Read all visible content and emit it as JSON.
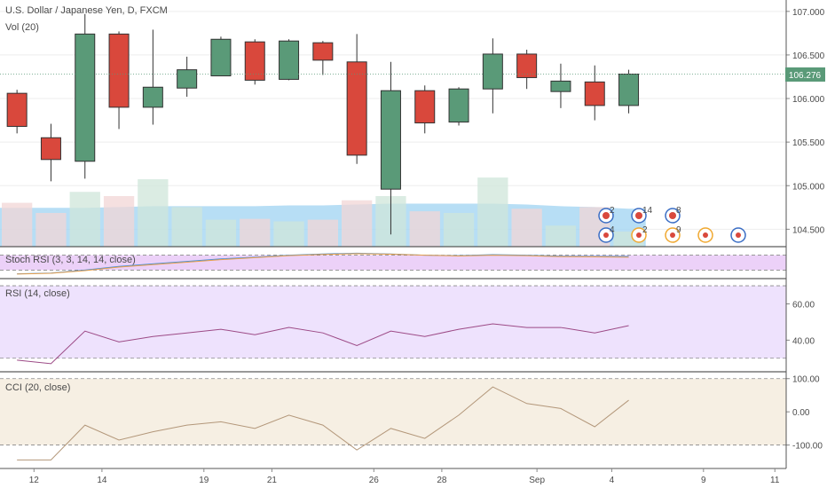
{
  "title": "U.S. Dollar / Japanese Yen, D, FXCM",
  "volume_label": "Vol (20)",
  "last_price_label": "106.276",
  "colors": {
    "up": "#5a9a78",
    "down": "#d9483c",
    "vol_up": "#cfe6da",
    "vol_down": "#f2d6d6",
    "vol_ma": "#9fd3f2",
    "stoch_bg": "#e9c9f7",
    "rsi_bg": "#ecdffd",
    "cci_bg": "#f5eee1",
    "last_price": "#5a9a78",
    "grid": "#eeeeee",
    "separator": "#333333"
  },
  "x_axis": {
    "ticks": [
      "12",
      "14",
      "19",
      "21",
      "26",
      "28",
      "Sep",
      "4",
      "9",
      "11"
    ]
  },
  "chart_data": [
    {
      "type": "candlestick",
      "name": "price",
      "y_ticks": [
        "107.000",
        "106.500",
        "106.000",
        "105.500",
        "105.000",
        "104.500"
      ],
      "ylim": [
        104.3,
        107.1
      ],
      "candles": [
        {
          "o": 106.06,
          "h": 106.1,
          "l": 105.6,
          "c": 105.68
        },
        {
          "o": 105.55,
          "h": 105.71,
          "l": 105.05,
          "c": 105.3
        },
        {
          "o": 105.28,
          "h": 106.97,
          "l": 105.08,
          "c": 106.74
        },
        {
          "o": 106.74,
          "h": 106.77,
          "l": 105.65,
          "c": 105.9
        },
        {
          "o": 105.9,
          "h": 106.79,
          "l": 105.7,
          "c": 106.13
        },
        {
          "o": 106.12,
          "h": 106.48,
          "l": 106.02,
          "c": 106.33
        },
        {
          "o": 106.26,
          "h": 106.71,
          "l": 106.26,
          "c": 106.68
        },
        {
          "o": 106.65,
          "h": 106.68,
          "l": 106.16,
          "c": 106.21
        },
        {
          "o": 106.22,
          "h": 106.68,
          "l": 106.21,
          "c": 106.66
        },
        {
          "o": 106.64,
          "h": 106.66,
          "l": 106.27,
          "c": 106.44
        },
        {
          "o": 106.42,
          "h": 106.74,
          "l": 105.25,
          "c": 105.35
        },
        {
          "o": 104.96,
          "h": 106.42,
          "l": 104.44,
          "c": 106.09
        },
        {
          "o": 106.09,
          "h": 106.15,
          "l": 105.6,
          "c": 105.72
        },
        {
          "o": 105.73,
          "h": 106.13,
          "l": 105.69,
          "c": 106.11
        },
        {
          "o": 106.11,
          "h": 106.69,
          "l": 105.83,
          "c": 106.51
        },
        {
          "o": 106.51,
          "h": 106.56,
          "l": 106.11,
          "c": 106.24
        },
        {
          "o": 106.08,
          "h": 106.4,
          "l": 105.89,
          "c": 106.2
        },
        {
          "o": 106.19,
          "h": 106.38,
          "l": 105.75,
          "c": 105.92
        },
        {
          "o": 105.92,
          "h": 106.33,
          "l": 105.83,
          "c": 106.28
        }
      ]
    },
    {
      "type": "bar",
      "name": "volume",
      "values": [
        52,
        40,
        65,
        60,
        80,
        47,
        32,
        33,
        30,
        32,
        55,
        60,
        42,
        40,
        82,
        45,
        25,
        47,
        18
      ],
      "direction": [
        "down",
        "down",
        "up",
        "down",
        "up",
        "up",
        "up",
        "down",
        "up",
        "down",
        "down",
        "up",
        "down",
        "up",
        "up",
        "down",
        "up",
        "down",
        "up"
      ],
      "ylim": [
        0,
        100
      ],
      "ma_values": [
        46,
        46,
        46,
        47,
        48,
        48,
        48,
        48,
        49,
        49,
        50,
        51,
        51,
        51,
        51,
        50,
        48,
        47,
        45
      ]
    },
    {
      "type": "line",
      "name": "stoch_rsi",
      "label": "Stoch RSI (3, 3, 14, 14, close)",
      "values": [
        5,
        8,
        20,
        35,
        45,
        55,
        65,
        72,
        80,
        85,
        88,
        85,
        80,
        78,
        82,
        80,
        76,
        75,
        75
      ],
      "values_d": [
        4,
        7,
        18,
        32,
        42,
        52,
        62,
        70,
        78,
        83,
        86,
        84,
        80,
        77,
        80,
        78,
        74,
        73,
        72
      ],
      "bands": [
        20,
        80
      ],
      "ylim": [
        0,
        100
      ]
    },
    {
      "type": "line",
      "name": "rsi",
      "label": "RSI (14, close)",
      "y_ticks": [
        "60.00",
        "40.00"
      ],
      "values": [
        29,
        27,
        45,
        39,
        42,
        44,
        46,
        43,
        47,
        44,
        37,
        45,
        42,
        46,
        49,
        47,
        47,
        44,
        48
      ],
      "bands": [
        30,
        70
      ],
      "ylim": [
        25,
        72
      ]
    },
    {
      "type": "line",
      "name": "cci",
      "label": "CCI (20, close)",
      "y_ticks": [
        "100.00",
        "0.00",
        "-100.00"
      ],
      "values": [
        -145,
        -145,
        -40,
        -85,
        -60,
        -40,
        -30,
        -50,
        -10,
        -40,
        -115,
        -50,
        -80,
        -10,
        75,
        25,
        10,
        -45,
        35
      ],
      "bands": [
        -100,
        100
      ],
      "ylim": [
        -160,
        110
      ]
    }
  ],
  "events": {
    "row1": [
      {
        "icon": "flag",
        "count": "2"
      },
      {
        "icon": "flag",
        "count": "14"
      },
      {
        "icon": "flag",
        "count": "8"
      }
    ],
    "row2": [
      {
        "icon": "flag",
        "count": "4"
      },
      {
        "icon": "dot",
        "count": "2"
      },
      {
        "icon": "dot",
        "count": "9"
      },
      {
        "icon": "dot",
        "count": ""
      },
      {
        "icon": "flag",
        "count": ""
      }
    ]
  }
}
